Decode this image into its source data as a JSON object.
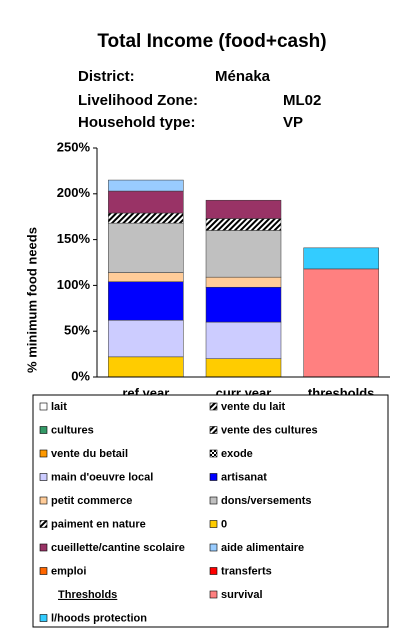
{
  "chart_data": {
    "type": "stacked-bar",
    "title": "Total Income (food+cash)",
    "info": [
      {
        "label": "District:",
        "value": "Ménaka"
      },
      {
        "label": "Livelihood Zone:",
        "value": "ML02"
      },
      {
        "label": "Household type:",
        "value": "VP"
      }
    ],
    "y_label": "% minimum food needs",
    "categories": [
      "ref year",
      "curr year",
      "thresholds"
    ],
    "ylim": [
      0,
      250
    ],
    "yticks": [
      {
        "value": 0,
        "label": "0%"
      },
      {
        "value": 50,
        "label": "50%"
      },
      {
        "value": 100,
        "label": "100%"
      },
      {
        "value": 150,
        "label": "150%"
      },
      {
        "value": 200,
        "label": "200%"
      },
      {
        "value": 250,
        "label": "250%"
      }
    ],
    "legend_heading": "Thresholds",
    "series": [
      {
        "name": "lait",
        "color": "#ffffff",
        "values": [
          0,
          0,
          0
        ]
      },
      {
        "name": "vente du lait",
        "color": "#000000",
        "pattern": "hatch",
        "values": [
          0,
          0,
          0
        ]
      },
      {
        "name": "cultures",
        "color": "#339966",
        "values": [
          0,
          0,
          0
        ]
      },
      {
        "name": "vente des cultures",
        "color": "#000000",
        "pattern": "hatch",
        "values": [
          0,
          0,
          0
        ]
      },
      {
        "name": "vente du betail",
        "color": "#ff9900",
        "values": [
          0,
          0,
          0
        ]
      },
      {
        "name": "exode",
        "color": "#000000",
        "pattern": "check",
        "values": [
          0,
          0,
          0
        ]
      },
      {
        "name": "main d'oeuvre local",
        "color": "#ccccff",
        "values": [
          40,
          40,
          0
        ]
      },
      {
        "name": "artisanat",
        "color": "#0000ff",
        "values": [
          42,
          38,
          0
        ]
      },
      {
        "name": "petit commerce",
        "color": "#ffcc99",
        "values": [
          10,
          11,
          0
        ]
      },
      {
        "name": "dons/versements",
        "color": "#c0c0c0",
        "values": [
          54,
          51,
          0
        ]
      },
      {
        "name": "paiment en nature",
        "color": "#000000",
        "pattern": "hatch",
        "values": [
          11,
          13,
          0
        ]
      },
      {
        "name": "0",
        "color": "#ffcc00",
        "values": [
          22,
          20,
          0
        ]
      },
      {
        "name": "cueillette/cantine scolaire",
        "color": "#993366",
        "values": [
          24,
          20,
          0
        ]
      },
      {
        "name": "aide alimentaire",
        "color": "#99ccff",
        "values": [
          12,
          0,
          0
        ]
      },
      {
        "name": "emploi",
        "color": "#ff6600",
        "values": [
          0,
          0,
          0
        ]
      },
      {
        "name": "transferts",
        "color": "#ff0000",
        "values": [
          0,
          0,
          0
        ]
      },
      {
        "name": "survival",
        "color": "#ff8080",
        "values": [
          0,
          0,
          118
        ]
      },
      {
        "name": "l/hoods protection",
        "color": "#33ccff",
        "values": [
          0,
          0,
          23
        ]
      }
    ]
  }
}
